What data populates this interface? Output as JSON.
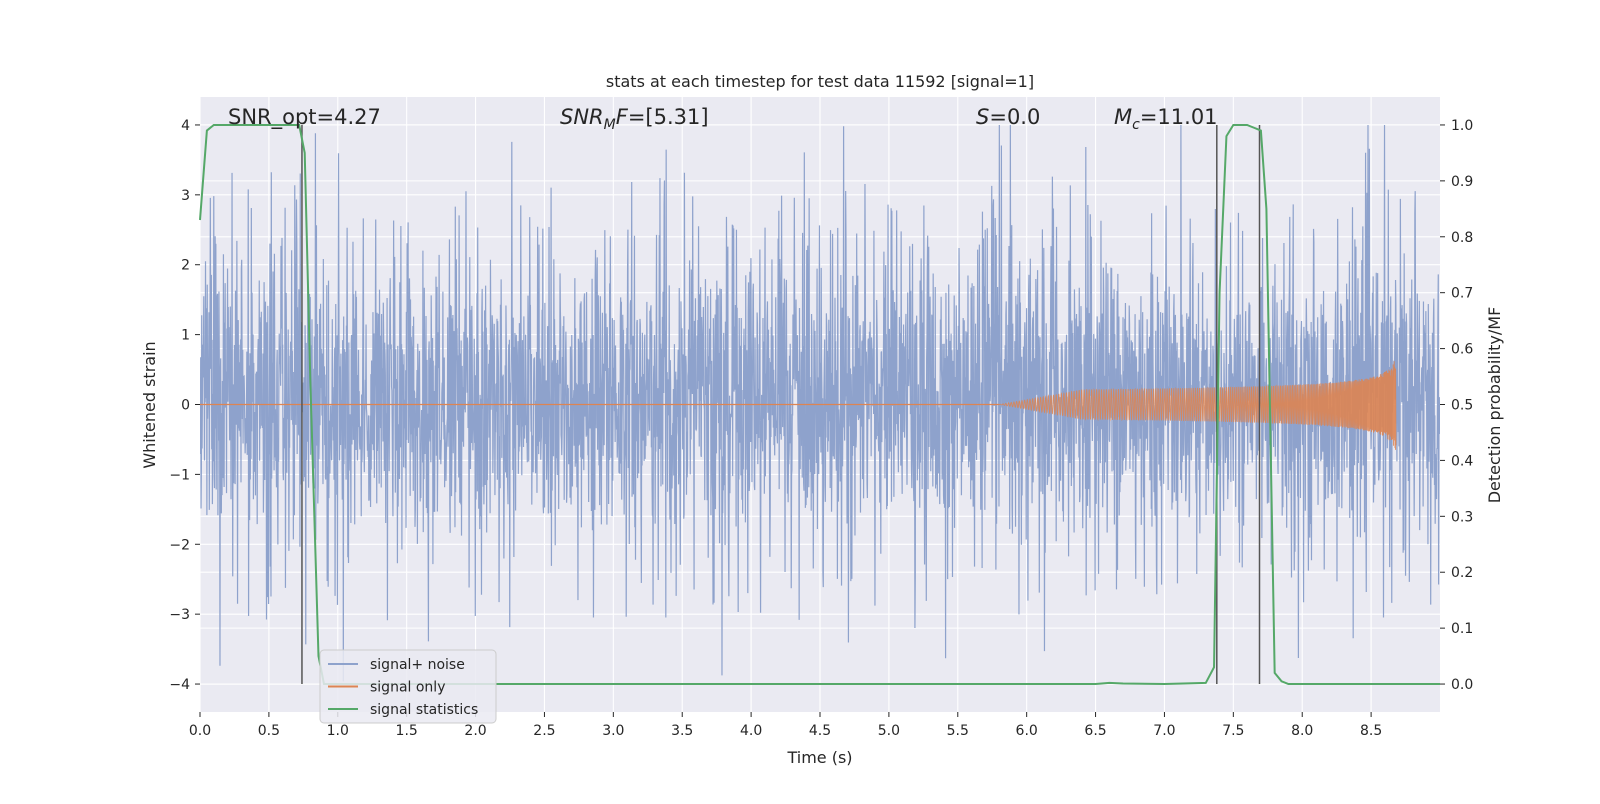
{
  "chart_data": {
    "type": "line",
    "title": "stats at each timestep for test data 11592 [signal=1]",
    "xlabel": "Time (s)",
    "ylabel_left": "Whitened strain",
    "ylabel_right": "Detection probability/MF",
    "xlim": [
      0.0,
      9.0
    ],
    "ylim_left": [
      -4.4,
      4.4
    ],
    "ylim_right": [
      -0.05,
      1.05
    ],
    "xticks": [
      "0.0",
      "0.5",
      "1.0",
      "1.5",
      "2.0",
      "2.5",
      "3.0",
      "3.5",
      "4.0",
      "4.5",
      "5.0",
      "5.5",
      "6.0",
      "6.5",
      "7.0",
      "7.5",
      "8.0",
      "8.5"
    ],
    "yticks_left": [
      "4",
      "3",
      "2",
      "1",
      "0",
      "−1",
      "−2",
      "−3",
      "−4"
    ],
    "yticks_right": [
      "1.0",
      "0.9",
      "0.8",
      "0.7",
      "0.6",
      "0.5",
      "0.4",
      "0.3",
      "0.2",
      "0.1",
      "0.0"
    ],
    "grid": true,
    "legend_position": "bottom-left",
    "annotations": {
      "snr_opt": "SNR_opt=4.27",
      "snr_mf": "=[5.31]",
      "s_value": "=0.0",
      "mc_value": "=11.01"
    },
    "colors": {
      "background": "#eaeaf2",
      "grid": "#ffffff",
      "noise": "#8ea2cc",
      "signal": "#dd8452",
      "statistics": "#55a868",
      "marker": "#555555"
    },
    "series": [
      {
        "name": "signal+ noise",
        "description_type": "dense noise trace",
        "y_range": [
          -4.0,
          4.0
        ],
        "typical_band": [
          -1.6,
          2.3
        ]
      },
      {
        "name": "signal only",
        "description_type": "chirp",
        "x_start": 5.8,
        "x_end": 8.68,
        "peak_amplitude": 0.7
      },
      {
        "name": "signal statistics",
        "axis": "right",
        "x": [
          0.0,
          0.05,
          0.1,
          0.2,
          0.4,
          0.6,
          0.72,
          0.76,
          0.8,
          0.86,
          0.9,
          1.0,
          2.0,
          3.0,
          4.0,
          5.0,
          6.0,
          6.5,
          6.6,
          6.7,
          7.0,
          7.3,
          7.36,
          7.4,
          7.45,
          7.5,
          7.6,
          7.65,
          7.7,
          7.74,
          7.8,
          7.85,
          7.9,
          8.0,
          8.5,
          9.0
        ],
        "y": [
          0.83,
          0.99,
          1.0,
          1.0,
          1.0,
          1.0,
          1.0,
          0.95,
          0.55,
          0.05,
          0.0,
          0.0,
          0.0,
          0.0,
          0.0,
          0.0,
          0.0,
          0.0,
          0.002,
          0.001,
          0.0,
          0.002,
          0.03,
          0.7,
          0.98,
          1.0,
          1.0,
          0.995,
          0.99,
          0.85,
          0.02,
          0.005,
          0.0,
          0.0,
          0.0,
          0.0
        ]
      }
    ],
    "vertical_markers": [
      0.74,
      7.38,
      7.69
    ]
  }
}
